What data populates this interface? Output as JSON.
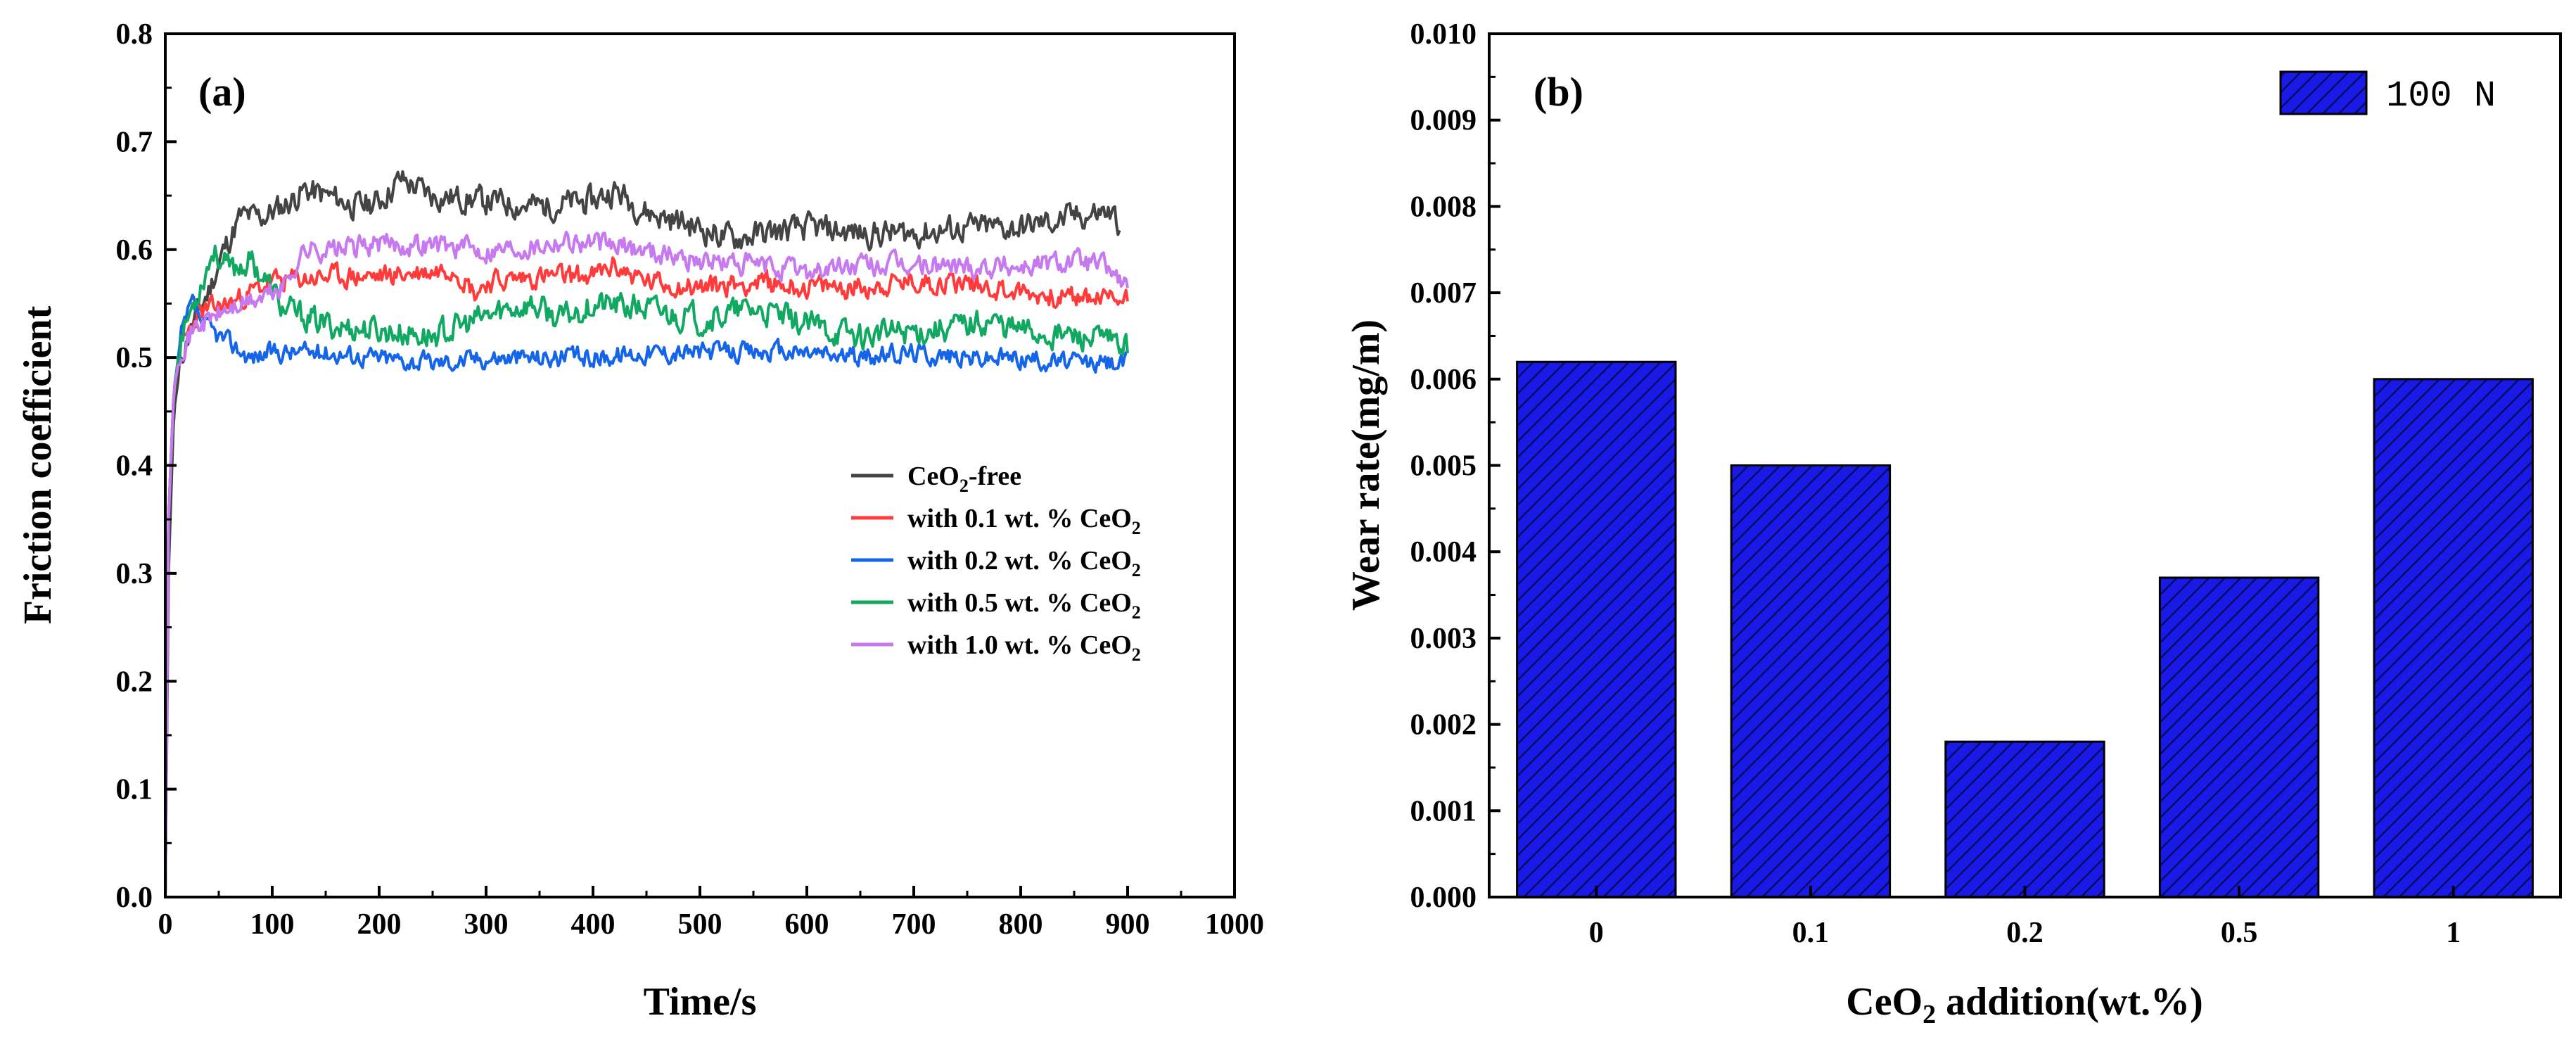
{
  "chart_data": [
    {
      "type": "line",
      "panel_label": "(a)",
      "xlabel": "Time/s",
      "ylabel": "Friction coefficient",
      "xlim": [
        0,
        1000
      ],
      "ylim": [
        0,
        0.8
      ],
      "x_ticks": [
        "0",
        "100",
        "200",
        "300",
        "400",
        "500",
        "600",
        "700",
        "800",
        "900",
        "1000"
      ],
      "y_ticks": [
        "0.0",
        "0.1",
        "0.2",
        "0.3",
        "0.4",
        "0.5",
        "0.6",
        "0.7",
        "0.8"
      ],
      "legend_position": "center-right",
      "series": [
        {
          "name": "CeO2-free",
          "legend_main": "CeO",
          "legend_sub": "2",
          "legend_suffix": "-free",
          "color": "#444444",
          "seed": 11,
          "noise": 0.011,
          "points": [
            [
              0,
              0
            ],
            [
              3,
              0.3
            ],
            [
              8,
              0.45
            ],
            [
              15,
              0.5
            ],
            [
              25,
              0.53
            ],
            [
              40,
              0.56
            ],
            [
              55,
              0.6
            ],
            [
              70,
              0.63
            ],
            [
              90,
              0.63
            ],
            [
              110,
              0.64
            ],
            [
              130,
              0.655
            ],
            [
              150,
              0.65
            ],
            [
              180,
              0.64
            ],
            [
              200,
              0.645
            ],
            [
              220,
              0.665
            ],
            [
              250,
              0.65
            ],
            [
              300,
              0.645
            ],
            [
              350,
              0.64
            ],
            [
              400,
              0.645
            ],
            [
              420,
              0.655
            ],
            [
              450,
              0.635
            ],
            [
              500,
              0.62
            ],
            [
              530,
              0.61
            ],
            [
              560,
              0.615
            ],
            [
              600,
              0.62
            ],
            [
              650,
              0.615
            ],
            [
              700,
              0.615
            ],
            [
              750,
              0.62
            ],
            [
              800,
              0.62
            ],
            [
              850,
              0.63
            ],
            [
              880,
              0.635
            ],
            [
              893,
              0.625
            ]
          ]
        },
        {
          "name": "with 0.1 wt. % CeO2",
          "legend_main": "with 0.1 wt. % CeO",
          "legend_sub": "2",
          "legend_suffix": "",
          "color": "#ff3b3b",
          "seed": 23,
          "noise": 0.009,
          "points": [
            [
              0,
              0
            ],
            [
              3,
              0.35
            ],
            [
              8,
              0.47
            ],
            [
              15,
              0.51
            ],
            [
              30,
              0.54
            ],
            [
              60,
              0.55
            ],
            [
              100,
              0.57
            ],
            [
              150,
              0.575
            ],
            [
              200,
              0.575
            ],
            [
              250,
              0.58
            ],
            [
              270,
              0.585
            ],
            [
              290,
              0.56
            ],
            [
              300,
              0.57
            ],
            [
              350,
              0.575
            ],
            [
              400,
              0.575
            ],
            [
              420,
              0.585
            ],
            [
              450,
              0.57
            ],
            [
              500,
              0.565
            ],
            [
              550,
              0.57
            ],
            [
              600,
              0.565
            ],
            [
              650,
              0.565
            ],
            [
              700,
              0.57
            ],
            [
              750,
              0.57
            ],
            [
              800,
              0.56
            ],
            [
              850,
              0.555
            ],
            [
              900,
              0.555
            ]
          ]
        },
        {
          "name": "with 0.2 wt. % CeO2",
          "legend_main": "with 0.2 wt. % CeO",
          "legend_sub": "2",
          "legend_suffix": "",
          "color": "#1565e8",
          "seed": 37,
          "noise": 0.008,
          "points": [
            [
              0,
              0
            ],
            [
              3,
              0.35
            ],
            [
              8,
              0.47
            ],
            [
              15,
              0.52
            ],
            [
              25,
              0.55
            ],
            [
              35,
              0.53
            ],
            [
              50,
              0.52
            ],
            [
              80,
              0.5
            ],
            [
              100,
              0.505
            ],
            [
              150,
              0.505
            ],
            [
              200,
              0.5
            ],
            [
              250,
              0.495
            ],
            [
              300,
              0.5
            ],
            [
              350,
              0.5
            ],
            [
              400,
              0.5
            ],
            [
              450,
              0.505
            ],
            [
              500,
              0.505
            ],
            [
              550,
              0.505
            ],
            [
              600,
              0.505
            ],
            [
              650,
              0.5
            ],
            [
              700,
              0.505
            ],
            [
              750,
              0.5
            ],
            [
              800,
              0.5
            ],
            [
              850,
              0.495
            ],
            [
              900,
              0.495
            ]
          ]
        },
        {
          "name": "with 0.5 wt. % CeO2",
          "legend_main": "with 0.5 wt. % CeO",
          "legend_sub": "2",
          "legend_suffix": "",
          "color": "#11a862",
          "seed": 53,
          "noise": 0.011,
          "points": [
            [
              0,
              0
            ],
            [
              3,
              0.35
            ],
            [
              8,
              0.47
            ],
            [
              15,
              0.52
            ],
            [
              30,
              0.56
            ],
            [
              45,
              0.6
            ],
            [
              60,
              0.58
            ],
            [
              80,
              0.59
            ],
            [
              95,
              0.57
            ],
            [
              110,
              0.545
            ],
            [
              150,
              0.53
            ],
            [
              200,
              0.525
            ],
            [
              250,
              0.52
            ],
            [
              280,
              0.53
            ],
            [
              320,
              0.545
            ],
            [
              340,
              0.55
            ],
            [
              370,
              0.535
            ],
            [
              400,
              0.55
            ],
            [
              450,
              0.545
            ],
            [
              500,
              0.535
            ],
            [
              550,
              0.545
            ],
            [
              600,
              0.53
            ],
            [
              650,
              0.52
            ],
            [
              700,
              0.525
            ],
            [
              750,
              0.53
            ],
            [
              770,
              0.535
            ],
            [
              800,
              0.525
            ],
            [
              850,
              0.52
            ],
            [
              900,
              0.51
            ]
          ]
        },
        {
          "name": "with 1.0 wt. % CeO2",
          "legend_main": "with 1.0 wt. % CeO",
          "legend_sub": "2",
          "legend_suffix": "",
          "color": "#c779ef",
          "seed": 71,
          "noise": 0.009,
          "points": [
            [
              0,
              0
            ],
            [
              3,
              0.35
            ],
            [
              8,
              0.47
            ],
            [
              15,
              0.51
            ],
            [
              30,
              0.53
            ],
            [
              60,
              0.545
            ],
            [
              90,
              0.555
            ],
            [
              110,
              0.565
            ],
            [
              130,
              0.6
            ],
            [
              160,
              0.6
            ],
            [
              200,
              0.605
            ],
            [
              250,
              0.605
            ],
            [
              300,
              0.6
            ],
            [
              350,
              0.605
            ],
            [
              370,
              0.61
            ],
            [
              400,
              0.605
            ],
            [
              450,
              0.6
            ],
            [
              500,
              0.59
            ],
            [
              550,
              0.585
            ],
            [
              600,
              0.58
            ],
            [
              650,
              0.585
            ],
            [
              700,
              0.585
            ],
            [
              750,
              0.585
            ],
            [
              800,
              0.585
            ],
            [
              850,
              0.59
            ],
            [
              880,
              0.585
            ],
            [
              900,
              0.565
            ]
          ]
        }
      ]
    },
    {
      "type": "bar",
      "panel_label": "(b)",
      "xlabel_main": "CeO",
      "xlabel_sub": "2",
      "xlabel_suffix": " addition(wt.%)",
      "ylabel": "Wear rate(mg/m)",
      "categories": [
        "0",
        "0.1",
        "0.2",
        "0.5",
        "1"
      ],
      "values": [
        0.0062,
        0.005,
        0.0018,
        0.0037,
        0.006
      ],
      "ylim": [
        0,
        0.01
      ],
      "y_ticks": [
        "0.000",
        "0.001",
        "0.002",
        "0.003",
        "0.004",
        "0.005",
        "0.006",
        "0.007",
        "0.008",
        "0.009",
        "0.010"
      ],
      "legend": "100 N",
      "legend_position": "top-right",
      "bar_color": "#1a1ae6",
      "hatch_color": "#0a0a66"
    }
  ]
}
